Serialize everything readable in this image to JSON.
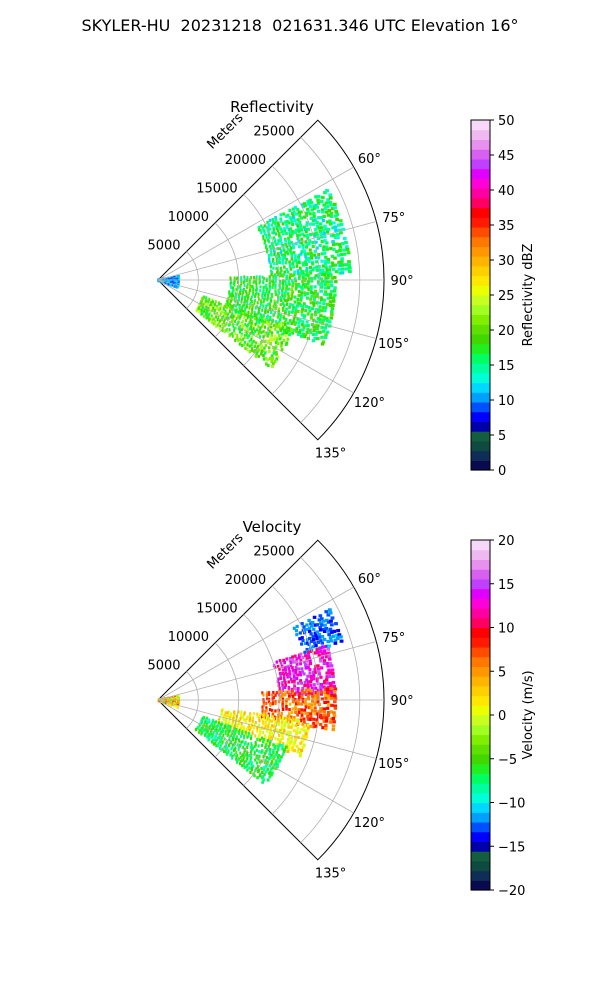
{
  "suptitle": "SKYLER-HU  20231218  021631.346 UTC Elevation 16°",
  "chart_data": [
    {
      "type": "polar_sector",
      "title": "Reflectivity",
      "radial_label": "Meters",
      "radial_ticks": [
        5000,
        10000,
        15000,
        20000,
        25000
      ],
      "radial_tick_labels": [
        "5000",
        "10000",
        "15000",
        "20000",
        "25000"
      ],
      "rmax": 28000,
      "theta_range_deg": [
        45,
        135
      ],
      "theta_ticks_deg": [
        60,
        75,
        90,
        105,
        120,
        135
      ],
      "theta_tick_labels": [
        "60°",
        "75°",
        "90°",
        "105°",
        "120°",
        "135°"
      ],
      "grid": true,
      "colorbar": {
        "label": "Reflectivity dBZ",
        "min": 0,
        "max": 50,
        "ticks": [
          0,
          5,
          10,
          15,
          20,
          25,
          30,
          35,
          40,
          45,
          50
        ],
        "tick_labels": [
          "0",
          "5",
          "10",
          "15",
          "20",
          "25",
          "30",
          "35",
          "40",
          "45",
          "50"
        ],
        "colors": [
          "#0a0a50",
          "#0e2e58",
          "#0f4a40",
          "#135e3e",
          "#0000a8",
          "#0000ff",
          "#0050ff",
          "#00a0ff",
          "#00d8ff",
          "#00ffd8",
          "#00ffa0",
          "#00ff60",
          "#20f020",
          "#40d800",
          "#60e000",
          "#80f000",
          "#a0ff20",
          "#c8ff20",
          "#eaff00",
          "#ffe800",
          "#ffd000",
          "#ffb400",
          "#ff9800",
          "#ff7800",
          "#ff4c00",
          "#ff1a00",
          "#ff0000",
          "#ff0060",
          "#ff00a0",
          "#ff00d8",
          "#e000ff",
          "#c040ff",
          "#d860f0",
          "#e890f0",
          "#f0b8f0",
          "#f8d8f8"
        ]
      },
      "echo_regions": [
        {
          "r_range": [
            14000,
            24000
          ],
          "theta_range": [
            62,
            88
          ],
          "value_range": [
            12,
            19
          ]
        },
        {
          "r_range": [
            9000,
            22000
          ],
          "theta_range": [
            88,
            112
          ],
          "value_range": [
            14,
            21
          ]
        },
        {
          "r_range": [
            6000,
            18000
          ],
          "theta_range": [
            110,
            128
          ],
          "value_range": [
            16,
            24
          ]
        },
        {
          "r_range": [
            100,
            2800
          ],
          "theta_range": [
            80,
            110
          ],
          "value_range": [
            8,
            13
          ]
        }
      ]
    },
    {
      "type": "polar_sector",
      "title": "Velocity",
      "radial_label": "Meters",
      "radial_ticks": [
        5000,
        10000,
        15000,
        20000,
        25000
      ],
      "radial_tick_labels": [
        "5000",
        "10000",
        "15000",
        "20000",
        "25000"
      ],
      "rmax": 28000,
      "theta_range_deg": [
        45,
        135
      ],
      "theta_ticks_deg": [
        60,
        75,
        90,
        105,
        120,
        135
      ],
      "theta_tick_labels": [
        "60°",
        "75°",
        "90°",
        "105°",
        "120°",
        "135°"
      ],
      "grid": true,
      "colorbar": {
        "label": "Velocity (m/s)",
        "min": -20,
        "max": 20,
        "ticks": [
          -20,
          -15,
          -10,
          -5,
          0,
          5,
          10,
          15,
          20
        ],
        "tick_labels": [
          "−20",
          "−15",
          "−10",
          "−5",
          "0",
          "5",
          "10",
          "15",
          "20"
        ],
        "colors": [
          "#0a0a50",
          "#0e2e58",
          "#0f4a40",
          "#135e3e",
          "#0000a8",
          "#0000ff",
          "#0050ff",
          "#00a0ff",
          "#00d8ff",
          "#00ffd8",
          "#00ffa0",
          "#00ff60",
          "#20f020",
          "#40d800",
          "#60e000",
          "#80f000",
          "#a0ff20",
          "#c8ff20",
          "#eaff00",
          "#ffe800",
          "#ffd000",
          "#ffb400",
          "#ff9800",
          "#ff7800",
          "#ff4c00",
          "#ff1a00",
          "#ff0000",
          "#ff0060",
          "#ff00a0",
          "#ff00d8",
          "#e000ff",
          "#c040ff",
          "#d860f0",
          "#e890f0",
          "#f0b8f0",
          "#f8d8f8"
        ]
      },
      "echo_regions": [
        {
          "r_range": [
            19000,
            24000
          ],
          "theta_range": [
            62,
            72
          ],
          "value_range": [
            -14,
            -11
          ]
        },
        {
          "r_range": [
            15000,
            22000
          ],
          "theta_range": [
            72,
            88
          ],
          "value_range": [
            10,
            16
          ]
        },
        {
          "r_range": [
            13000,
            22000
          ],
          "theta_range": [
            86,
            100
          ],
          "value_range": [
            4,
            10
          ]
        },
        {
          "r_range": [
            8000,
            19000
          ],
          "theta_range": [
            98,
            112
          ],
          "value_range": [
            -1,
            4
          ]
        },
        {
          "r_range": [
            6000,
            17000
          ],
          "theta_range": [
            110,
            128
          ],
          "value_range": [
            -9,
            -4
          ]
        },
        {
          "r_range": [
            100,
            2800
          ],
          "theta_range": [
            80,
            110
          ],
          "value_range": [
            -4,
            8
          ]
        }
      ]
    }
  ]
}
